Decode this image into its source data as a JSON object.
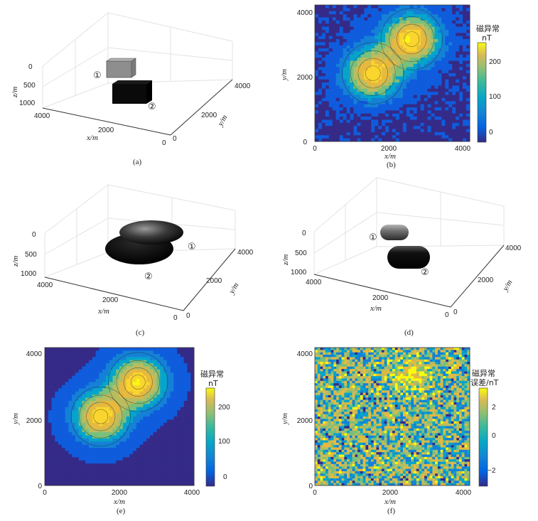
{
  "figure": {
    "panels": [
      {
        "id": "a",
        "caption": "(a)",
        "kind": "3d-model",
        "x_label": "x/m",
        "y_label": "y/m",
        "z_label": "z/m",
        "x_ticks": [
          "4000",
          "2000",
          "0"
        ],
        "y_ticks": [
          "0",
          "2000",
          "4000"
        ],
        "z_ticks": [
          "0",
          "500",
          "1000"
        ],
        "bodies": [
          "①",
          "②"
        ]
      },
      {
        "id": "b",
        "caption": "(b)",
        "kind": "contour-map",
        "x_label": "x/m",
        "y_label": "y/m",
        "x_ticks": [
          "0",
          "2000",
          "4000"
        ],
        "y_ticks": [
          "0",
          "2000",
          "4000"
        ],
        "colorbar_title": [
          "磁异常",
          "nT"
        ],
        "colorbar_ticks": [
          "0",
          "100",
          "200"
        ]
      },
      {
        "id": "c",
        "caption": "(c)",
        "kind": "3d-model",
        "x_label": "x/m",
        "y_label": "y/m",
        "z_label": "z/m",
        "x_ticks": [
          "4000",
          "2000",
          "0"
        ],
        "y_ticks": [
          "0",
          "2000",
          "4000"
        ],
        "z_ticks": [
          "0",
          "500",
          "1000"
        ],
        "bodies": [
          "①",
          "②"
        ]
      },
      {
        "id": "d",
        "caption": "(d)",
        "kind": "3d-model",
        "x_label": "x/m",
        "y_label": "y/m",
        "z_label": "z/m",
        "x_ticks": [
          "4000",
          "2000",
          "0"
        ],
        "y_ticks": [
          "0",
          "2000",
          "4000"
        ],
        "z_ticks": [
          "0",
          "500",
          "1000"
        ],
        "bodies": [
          "①",
          "②"
        ]
      },
      {
        "id": "e",
        "caption": "(e)",
        "kind": "contour-map",
        "x_label": "x/m",
        "y_label": "y/m",
        "x_ticks": [
          "0",
          "2000",
          "4000"
        ],
        "y_ticks": [
          "0",
          "2000",
          "4000"
        ],
        "colorbar_title": [
          "磁异常",
          "nT"
        ],
        "colorbar_ticks": [
          "0",
          "100",
          "200"
        ]
      },
      {
        "id": "f",
        "caption": "(f)",
        "kind": "contour-map",
        "x_label": "x/m",
        "y_label": "y/m",
        "x_ticks": [
          "0",
          "2000",
          "4000"
        ],
        "y_ticks": [
          "0",
          "2000",
          "4000"
        ],
        "colorbar_title": [
          "磁异常",
          "误差/nT"
        ],
        "colorbar_ticks": [
          "2",
          "0",
          "−2"
        ]
      }
    ]
  },
  "colors": {
    "parula_low": "#352a87",
    "parula_mid": "#14b8b4",
    "parula_high": "#f9fb0e",
    "background_map": "#3548a8",
    "model_grey": "#8e8e8e",
    "model_black": "#0a0a0a"
  },
  "chart_data": [
    {
      "panel": "b",
      "type": "heatmap",
      "title": "",
      "xlabel": "x/m",
      "ylabel": "y/m",
      "xlim": [
        0,
        4000
      ],
      "ylim": [
        0,
        4000
      ],
      "colorbar_label": "磁异常 nT",
      "clim": [
        -30,
        250
      ],
      "peaks": [
        {
          "x": 1500,
          "y": 2000,
          "value": 240
        },
        {
          "x": 2500,
          "y": 3000,
          "value": 250
        }
      ],
      "noise": true
    },
    {
      "panel": "e",
      "type": "heatmap",
      "title": "",
      "xlabel": "x/m",
      "ylabel": "y/m",
      "xlim": [
        0,
        4000
      ],
      "ylim": [
        0,
        4000
      ],
      "colorbar_label": "磁异常 nT",
      "clim": [
        -30,
        250
      ],
      "peaks": [
        {
          "x": 1500,
          "y": 2000,
          "value": 240
        },
        {
          "x": 2500,
          "y": 3000,
          "value": 250
        }
      ],
      "noise": false
    },
    {
      "panel": "f",
      "type": "heatmap",
      "title": "",
      "xlabel": "x/m",
      "ylabel": "y/m",
      "xlim": [
        0,
        4000
      ],
      "ylim": [
        0,
        4000
      ],
      "colorbar_label": "磁异常 误差/nT",
      "clim": [
        -3.5,
        3.5
      ],
      "noise": true
    }
  ]
}
